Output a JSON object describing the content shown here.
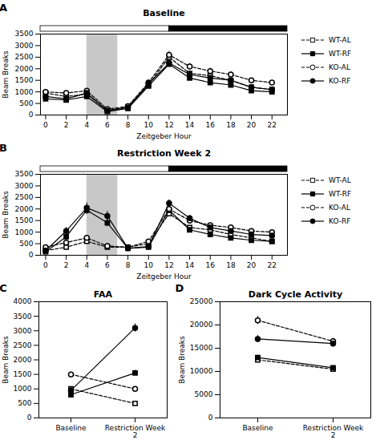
{
  "chart_data": [
    {
      "type": "line",
      "panel_label": "A",
      "title": "Baseline",
      "xlabel": "Zeitgeber Hour",
      "ylabel": "Beam Breaks",
      "x": [
        0,
        2,
        4,
        6,
        8,
        10,
        12,
        14,
        16,
        18,
        20,
        22
      ],
      "xlim": [
        -0.5,
        23.5
      ],
      "xticks": [
        0,
        2,
        4,
        6,
        8,
        10,
        12,
        14,
        16,
        18,
        20,
        22
      ],
      "ylim": [
        0,
        3500
      ],
      "yticks": [
        0,
        500,
        1000,
        1500,
        2000,
        2500,
        3000,
        3500
      ],
      "shade": [
        4,
        7
      ],
      "light_dark_transition": 12,
      "legend": "right",
      "series": [
        {
          "name": "WT-AL",
          "color": "black",
          "marker": "open_square",
          "line_style": "dashed",
          "values": [
            950,
            800,
            900,
            200,
            350,
            1300,
            2500,
            1800,
            1700,
            1500,
            1200,
            1100
          ],
          "errors": [
            60,
            55,
            70,
            30,
            40,
            100,
            130,
            110,
            100,
            90,
            80,
            75
          ]
        },
        {
          "name": "WT-RF",
          "color": "black",
          "marker": "square",
          "line_style": "solid",
          "values": [
            700,
            650,
            800,
            150,
            280,
            1250,
            2200,
            1600,
            1400,
            1300,
            1050,
            1000
          ],
          "errors": [
            55,
            50,
            65,
            25,
            35,
            90,
            120,
            100,
            90,
            80,
            70,
            65
          ]
        },
        {
          "name": "KO-AL",
          "color": "black",
          "marker": "open_circle",
          "line_style": "dashed",
          "values": [
            1000,
            950,
            1050,
            250,
            380,
            1400,
            2600,
            2100,
            1900,
            1750,
            1500,
            1400
          ],
          "errors": [
            70,
            65,
            80,
            40,
            50,
            110,
            150,
            130,
            120,
            110,
            100,
            90
          ]
        },
        {
          "name": "KO-RF",
          "color": "black",
          "marker": "circle",
          "line_style": "solid",
          "values": [
            800,
            700,
            950,
            180,
            320,
            1350,
            2250,
            1750,
            1600,
            1500,
            1200,
            1100
          ],
          "errors": [
            60,
            55,
            70,
            30,
            40,
            95,
            130,
            115,
            105,
            95,
            85,
            80
          ]
        }
      ]
    },
    {
      "type": "line",
      "panel_label": "B",
      "title": "Restriction Week 2",
      "xlabel": "Zeitgeber Hour",
      "ylabel": "Beam Breaks",
      "x": [
        0,
        2,
        4,
        6,
        8,
        10,
        12,
        14,
        16,
        18,
        20,
        22
      ],
      "xlim": [
        -0.5,
        23.5
      ],
      "xticks": [
        0,
        2,
        4,
        6,
        8,
        10,
        12,
        14,
        16,
        18,
        20,
        22
      ],
      "ylim": [
        0,
        3500
      ],
      "yticks": [
        0,
        500,
        1000,
        1500,
        2000,
        2500,
        3000,
        3500
      ],
      "shade": [
        4,
        7
      ],
      "light_dark_transition": 12,
      "legend": "right",
      "series": [
        {
          "name": "WT-AL",
          "color": "black",
          "marker": "open_square",
          "line_style": "dashed",
          "values": [
            200,
            350,
            600,
            350,
            350,
            500,
            1800,
            1200,
            1100,
            900,
            750,
            600
          ],
          "errors": [
            30,
            55,
            80,
            60,
            45,
            65,
            110,
            90,
            80,
            70,
            65,
            60
          ]
        },
        {
          "name": "WT-RF",
          "color": "black",
          "marker": "square",
          "line_style": "solid",
          "values": [
            150,
            800,
            1950,
            1400,
            300,
            350,
            1950,
            1100,
            900,
            750,
            650,
            600
          ],
          "errors": [
            25,
            130,
            180,
            160,
            50,
            55,
            130,
            100,
            80,
            70,
            60,
            55
          ]
        },
        {
          "name": "KO-AL",
          "color": "black",
          "marker": "open_circle",
          "line_style": "dashed",
          "values": [
            350,
            550,
            750,
            400,
            350,
            600,
            2000,
            1500,
            1300,
            1200,
            1050,
            1000
          ],
          "errors": [
            40,
            65,
            90,
            70,
            55,
            75,
            120,
            100,
            90,
            80,
            75,
            70
          ]
        },
        {
          "name": "KO-RF",
          "color": "black",
          "marker": "circle",
          "line_style": "solid",
          "values": [
            200,
            1050,
            2050,
            1700,
            300,
            380,
            2250,
            1600,
            1200,
            1050,
            900,
            850
          ],
          "errors": [
            30,
            160,
            220,
            200,
            55,
            60,
            150,
            120,
            90,
            80,
            70,
            65
          ]
        }
      ]
    },
    {
      "type": "line",
      "panel_label": "C",
      "title": "FAA",
      "ylabel": "Beam Breaks",
      "categories": [
        "Baseline",
        "Restriction Week\n2"
      ],
      "ylim": [
        0,
        4000
      ],
      "yticks": [
        0,
        500,
        1000,
        1500,
        2000,
        2500,
        3000,
        3500,
        4000
      ],
      "series": [
        {
          "name": "WT-AL",
          "color": "black",
          "marker": "open_square",
          "line_style": "dashed",
          "values": [
            1000,
            500
          ],
          "errors": [
            70,
            50
          ]
        },
        {
          "name": "WT-RF",
          "color": "black",
          "marker": "square",
          "line_style": "solid",
          "values": [
            800,
            1550
          ],
          "errors": [
            60,
            90
          ]
        },
        {
          "name": "KO-AL",
          "color": "black",
          "marker": "open_circle",
          "line_style": "dashed",
          "values": [
            1500,
            1000
          ],
          "errors": [
            80,
            75
          ]
        },
        {
          "name": "KO-RF",
          "color": "black",
          "marker": "circle",
          "line_style": "solid",
          "values": [
            950,
            3100
          ],
          "errors": [
            75,
            140
          ]
        }
      ]
    },
    {
      "type": "line",
      "panel_label": "D",
      "title": "Dark Cycle Activity",
      "ylabel": "Beam Breaks",
      "categories": [
        "Baseline",
        "Restriction Week\n2"
      ],
      "ylim": [
        0,
        25000
      ],
      "yticks": [
        0,
        5000,
        10000,
        15000,
        20000,
        25000
      ],
      "series": [
        {
          "name": "WT-AL",
          "color": "black",
          "marker": "open_square",
          "line_style": "dashed",
          "values": [
            12500,
            10500
          ],
          "errors": [
            450,
            380
          ]
        },
        {
          "name": "WT-RF",
          "color": "black",
          "marker": "square",
          "line_style": "solid",
          "values": [
            13000,
            10800
          ],
          "errors": [
            500,
            420
          ]
        },
        {
          "name": "KO-AL",
          "color": "black",
          "marker": "open_circle",
          "line_style": "dashed",
          "values": [
            21000,
            16500
          ],
          "errors": [
            850,
            650
          ]
        },
        {
          "name": "KO-RF",
          "color": "black",
          "marker": "circle",
          "line_style": "solid",
          "values": [
            17000,
            16000
          ],
          "errors": [
            750,
            580
          ]
        }
      ]
    }
  ]
}
